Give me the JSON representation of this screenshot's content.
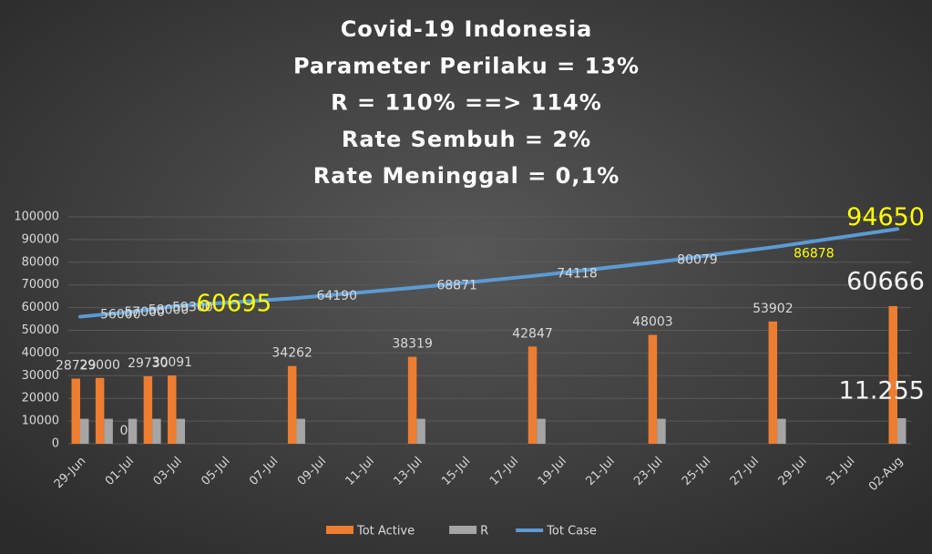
{
  "chart_data": {
    "type": "bar-line",
    "title": [
      "Covid-19 Indonesia",
      "Parameter Perilaku = 13%",
      "R = 110% ==> 114%",
      "Rate Sembuh = 2%",
      "Rate Meninggal = 0,1%"
    ],
    "categories": [
      "29-Jun",
      null,
      "01-Jul",
      null,
      "03-Jul",
      null,
      "05-Jul",
      null,
      "07-Jul",
      null,
      "09-Jul",
      null,
      "11-Jul",
      null,
      "13-Jul",
      null,
      "15-Jul",
      null,
      "17-Jul",
      null,
      "19-Jul",
      null,
      "21-Jul",
      null,
      "23-Jul",
      null,
      "25-Jul",
      null,
      "27-Jul",
      null,
      "29-Jul",
      null,
      "31-Jul",
      null,
      "02-Aug"
    ],
    "series": [
      {
        "name": "Tot Active",
        "type": "bar",
        "color": "#ed7d31",
        "values": [
          28729,
          29000,
          0,
          29730,
          30091,
          null,
          null,
          null,
          null,
          34262,
          null,
          null,
          null,
          null,
          38319,
          null,
          null,
          null,
          null,
          42847,
          null,
          null,
          null,
          null,
          48003,
          null,
          null,
          null,
          null,
          53902,
          null,
          null,
          null,
          null,
          60666
        ]
      },
      {
        "name": "R",
        "type": "bar",
        "color": "#a5a5a5",
        "values": [
          11000,
          11000,
          11000,
          11000,
          11000,
          null,
          null,
          null,
          null,
          11000,
          null,
          null,
          null,
          null,
          11000,
          null,
          null,
          null,
          null,
          11000,
          null,
          null,
          null,
          null,
          11000,
          null,
          null,
          null,
          null,
          11000,
          null,
          null,
          null,
          null,
          11255
        ],
        "value_labels": [
          null,
          null,
          null,
          null,
          null,
          null,
          null,
          null,
          null,
          null,
          null,
          null,
          null,
          null,
          null,
          null,
          null,
          null,
          null,
          null,
          null,
          null,
          null,
          null,
          null,
          null,
          null,
          null,
          null,
          null,
          null,
          null,
          null,
          null,
          "11.255"
        ]
      },
      {
        "name": "Tot Case",
        "type": "line",
        "color": "#5b9bd5",
        "values": [
          56000,
          57000,
          58000,
          59300,
          60695,
          null,
          null,
          null,
          null,
          64190,
          null,
          null,
          null,
          null,
          68871,
          null,
          null,
          null,
          null,
          74118,
          null,
          null,
          null,
          null,
          80079,
          null,
          null,
          null,
          null,
          86878,
          null,
          null,
          null,
          null,
          94650
        ]
      }
    ],
    "ylim": [
      0,
      100000
    ],
    "yticks": [
      0,
      10000,
      20000,
      30000,
      40000,
      50000,
      60000,
      70000,
      80000,
      90000,
      100000
    ],
    "grid": true,
    "legend": "bottom"
  }
}
